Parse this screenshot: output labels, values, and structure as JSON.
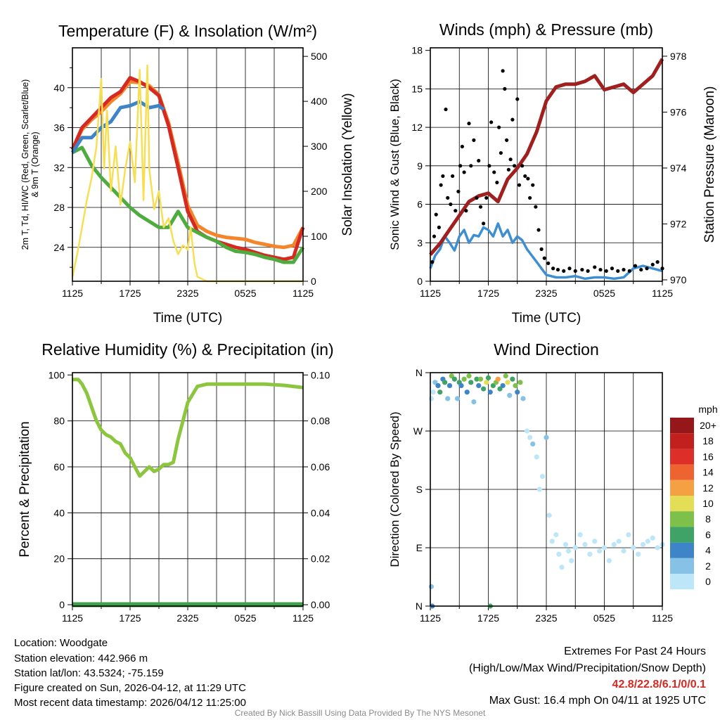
{
  "chart_data": [
    {
      "id": "temp",
      "type": "line",
      "title": "Temperature (F) & Insolation (W/m²)",
      "xlabel": "Time (UTC)",
      "ylabel_line1": "2m T, Td, HI/WC (Red, Green, Scarlet/Blue)",
      "ylabel_line2": "& 9m T (Orange)",
      "y2label": "Solar Insolation (Yellow)",
      "xticks": [
        "1125",
        "1725",
        "2325",
        "0525",
        "1125"
      ],
      "xlim": [
        0,
        24
      ],
      "ylim": [
        20.6,
        44
      ],
      "yticks": [
        24,
        28,
        32,
        36,
        40
      ],
      "y2lim": [
        0,
        519
      ],
      "y2ticks": [
        0,
        100,
        200,
        300,
        400,
        500
      ],
      "series": [
        {
          "name": "9m T",
          "axis": "left",
          "color": "#f4852b",
          "x": [
            0,
            1,
            2,
            3,
            4,
            5,
            6,
            7,
            8,
            9,
            10,
            11,
            12,
            13,
            14,
            15,
            16,
            17,
            18,
            19,
            20,
            21,
            22,
            23,
            24
          ],
          "values": [
            33.8,
            35.8,
            36.8,
            37.6,
            38.6,
            39.4,
            40.6,
            40.5,
            40.2,
            39.3,
            36.5,
            32.5,
            28.2,
            26.2,
            25.6,
            25.2,
            25,
            24.9,
            24.8,
            24.5,
            24.3,
            24.1,
            24,
            24.2,
            26
          ]
        },
        {
          "name": "2m T",
          "axis": "left",
          "color": "#d42a22",
          "x": [
            0,
            1,
            2,
            3,
            4,
            5,
            6,
            7,
            8,
            9,
            10,
            11,
            12,
            13,
            14,
            15,
            16,
            17,
            18,
            19,
            20,
            21,
            22,
            23,
            24
          ],
          "values": [
            33.8,
            36,
            37,
            38,
            39,
            39.6,
            41,
            40.6,
            40,
            39.2,
            36.2,
            32,
            27.6,
            25.6,
            25,
            24.6,
            24.3,
            24,
            23.8,
            23.5,
            23.2,
            23,
            22.8,
            23,
            26
          ]
        },
        {
          "name": "Td",
          "axis": "left",
          "color": "#4eab3e",
          "x": [
            0,
            1,
            2,
            3,
            4,
            5,
            6,
            7,
            8,
            9,
            10,
            11,
            12,
            13,
            14,
            15,
            16,
            17,
            18,
            19,
            20,
            21,
            22,
            23,
            24
          ],
          "values": [
            33.5,
            34,
            32.2,
            31,
            30,
            29,
            28,
            27.2,
            26.6,
            26,
            26,
            27.6,
            26,
            25.5,
            25,
            24.6,
            24,
            23.6,
            23.5,
            23.3,
            23,
            22.8,
            22.5,
            22.5,
            24
          ]
        },
        {
          "name": "WC",
          "axis": "left",
          "color": "#3d85c6",
          "x": [
            0,
            1,
            2,
            3,
            4,
            5,
            6,
            7,
            8,
            9,
            9.5
          ],
          "values": [
            33.5,
            35,
            35,
            36,
            36.6,
            38,
            38.2,
            38.6,
            38,
            38.2,
            37.8
          ]
        },
        {
          "name": "Solar",
          "axis": "right",
          "color": "#f7df55",
          "x": [
            0,
            0.5,
            1,
            1.5,
            2,
            2.5,
            3,
            3.3,
            3.6,
            4,
            4.5,
            5,
            5.5,
            6,
            6.5,
            7,
            7.4,
            7.8,
            8,
            8.5,
            9,
            9.5,
            10,
            10.5,
            11,
            11.5,
            12,
            12.3,
            12.7,
            13,
            14,
            16,
            18,
            20,
            22,
            23,
            24
          ],
          "values": [
            10,
            60,
            120,
            180,
            230,
            300,
            450,
            250,
            380,
            200,
            300,
            170,
            250,
            310,
            220,
            470,
            180,
            480,
            250,
            160,
            200,
            120,
            140,
            90,
            60,
            80,
            70,
            120,
            40,
            10,
            0,
            0,
            0,
            0,
            0,
            0,
            0
          ]
        }
      ]
    },
    {
      "id": "wind",
      "type": "line",
      "title": "Winds (mph) & Pressure (mb)",
      "xlabel": "Time (UTC)",
      "ylabel": "Sonic Wind & Gust (Blue, Black)",
      "y2label": "Station Pressure (Maroon)",
      "xticks": [
        "1125",
        "1725",
        "2325",
        "0525",
        "1125"
      ],
      "xlim": [
        0,
        24
      ],
      "ylim": [
        0,
        18.2
      ],
      "yticks": [
        0,
        3,
        6,
        9,
        12,
        15,
        18
      ],
      "y2lim": [
        969.95,
        978.3
      ],
      "y2ticks": [
        970,
        972,
        974,
        976,
        978
      ],
      "series": [
        {
          "name": "Sonic Wind",
          "axis": "left",
          "color": "#3d8fd2",
          "x": [
            0,
            0.5,
            1,
            1.5,
            2,
            2.5,
            3,
            3.5,
            4,
            4.5,
            5,
            5.5,
            6,
            6.5,
            7,
            7.5,
            8,
            8.5,
            9,
            9.5,
            10,
            10.5,
            11,
            11.5,
            12,
            13,
            14,
            15,
            16,
            17,
            18,
            19,
            20,
            21,
            22,
            23,
            24
          ],
          "values": [
            1,
            2,
            2.5,
            3.5,
            3,
            2.4,
            3.5,
            4,
            3,
            3.6,
            3.5,
            4.2,
            4,
            3.5,
            4.5,
            3.5,
            4,
            3,
            3.5,
            3.2,
            2.5,
            2,
            1.5,
            1,
            0.5,
            0.3,
            0.3,
            0.4,
            0.2,
            0.3,
            0.3,
            0.2,
            0.3,
            1,
            1.2,
            1,
            0.8
          ]
        },
        {
          "name": "Pressure",
          "axis": "right",
          "color": "#a01f1f",
          "x": [
            0,
            1,
            2,
            3,
            4,
            5,
            6,
            7,
            8,
            9,
            10,
            11,
            12,
            13,
            14,
            15,
            16,
            17,
            18,
            19,
            20,
            21,
            22,
            23,
            24
          ],
          "values": [
            970.9,
            971.3,
            971.8,
            972.3,
            972.8,
            973,
            973.1,
            972.8,
            973.6,
            974,
            974.5,
            975.3,
            976.4,
            976.9,
            977,
            977,
            977.1,
            977.3,
            976.8,
            976.9,
            977,
            976.7,
            977,
            977.3,
            977.9
          ]
        }
      ],
      "gusts": {
        "x": [
          0.2,
          0.4,
          0.6,
          0.9,
          1.1,
          1.3,
          1.6,
          1.8,
          2.1,
          2.3,
          2.6,
          2.9,
          3.1,
          3.3,
          3.5,
          3.7,
          4,
          4.2,
          4.5,
          4.8,
          5,
          5.2,
          5.5,
          5.8,
          6.1,
          6.3,
          6.6,
          6.9,
          7.1,
          7.3,
          7.5,
          7.7,
          7.9,
          8.1,
          8.3,
          8.5,
          8.7,
          9,
          9.2,
          9.5,
          9.8,
          10.1,
          10.3,
          10.6,
          10.9,
          11.2,
          11.5,
          11.8,
          12.2,
          12.7,
          13.2,
          13.8,
          14.4,
          15,
          15.7,
          16.3,
          17,
          17.6,
          18.2,
          18.8,
          19.4,
          20,
          20.6,
          21.2,
          21.8,
          22.4,
          23,
          23.5,
          24
        ],
        "values": [
          1.5,
          3.5,
          5.2,
          4.2,
          7.5,
          8.2,
          13.4,
          6.5,
          6,
          8.2,
          5.5,
          7,
          9,
          10.5,
          8.5,
          5.5,
          12.3,
          9,
          11,
          6.5,
          9.4,
          5.8,
          4.5,
          6.5,
          9,
          12.4,
          8.5,
          7.7,
          12,
          10,
          16.4,
          15,
          11,
          8.7,
          9.5,
          12.6,
          9,
          14.2,
          7.5,
          9,
          8.2,
          8,
          6.5,
          7.5,
          5.8,
          4,
          2.5,
          1.8,
          1.4,
          1,
          0.9,
          0.8,
          1,
          0.8,
          0.9,
          0.8,
          1.1,
          0.9,
          0.8,
          1,
          0.8,
          0.9,
          0.8,
          1.2,
          0.9,
          1,
          1.3,
          1.5,
          1.0
        ]
      },
      "gust_color": "#000000"
    },
    {
      "id": "rh",
      "type": "line",
      "title": "Relative Humidity (%) & Precipitation (in)",
      "xlabel": "",
      "ylabel": "Percent & Precipitation",
      "xticks": [
        "1125",
        "1725",
        "2325",
        "0525",
        "1125"
      ],
      "xlim": [
        0,
        24
      ],
      "ylim": [
        -0.6,
        101
      ],
      "yticks": [
        0,
        20,
        40,
        60,
        80,
        100
      ],
      "y2lim": [
        -0.0006,
        0.101
      ],
      "y2ticks": [
        "0.00",
        "0.02",
        "0.04",
        "0.06",
        "0.08",
        "0.10"
      ],
      "series": [
        {
          "name": "RH",
          "axis": "left",
          "color": "#8cc63f",
          "x": [
            0,
            0.6,
            1,
            1.5,
            2,
            2.5,
            3,
            3.5,
            4,
            4.5,
            5,
            5.5,
            6,
            6.5,
            7,
            7.5,
            8,
            8.5,
            9,
            9.5,
            10,
            10.5,
            11,
            11.5,
            12,
            13,
            14,
            16,
            18,
            20,
            22,
            23,
            24
          ],
          "values": [
            98,
            98,
            96,
            92,
            86,
            80,
            76,
            74,
            73,
            71,
            70,
            66,
            64,
            60,
            56,
            58,
            60,
            58,
            59,
            61,
            61,
            62,
            72,
            80,
            88,
            95,
            96,
            96,
            96,
            96,
            95.5,
            95,
            94.5
          ]
        },
        {
          "name": "Precipitation",
          "axis": "right",
          "color": "#3fa24a",
          "x": [
            0,
            24
          ],
          "values": [
            0,
            0
          ]
        }
      ]
    },
    {
      "id": "dir",
      "type": "scatter",
      "title": "Wind Direction",
      "xlabel": "",
      "ylabel": "Direction (Colored By Speed)",
      "xticks": [
        "1125",
        "1725",
        "2325",
        "0525",
        "1125"
      ],
      "xlim": [
        0,
        24
      ],
      "ylim": [
        0,
        360
      ],
      "yticks": [
        "N",
        "E",
        "S",
        "W",
        "N"
      ],
      "ytick_values": [
        0,
        90,
        180,
        270,
        360
      ],
      "points": {
        "x": [
          0.1,
          0.3,
          0.5,
          0.8,
          1,
          1.3,
          1.5,
          1.8,
          2,
          2.2,
          2.5,
          2.8,
          3,
          3.2,
          3.5,
          3.8,
          4,
          4.2,
          4.5,
          4.8,
          5,
          5.2,
          5.5,
          5.8,
          6,
          6.2,
          6.5,
          6.8,
          7,
          7.2,
          7.5,
          7.8,
          8,
          8.2,
          8.5,
          8.8,
          9,
          9.3,
          9.6,
          10,
          10.3,
          10.6,
          11,
          11.3,
          11.6,
          12,
          12.3,
          12.6,
          13,
          13.3,
          13.6,
          14,
          14.3,
          14.6,
          15,
          15.5,
          16,
          16.5,
          17,
          17.5,
          18,
          18.5,
          19,
          19.5,
          20,
          20.5,
          21,
          21.5,
          22,
          22.5,
          23,
          23.5,
          24,
          0.1,
          6.2,
          0.2
        ],
        "y": [
          320,
          330,
          345,
          340,
          330,
          350,
          345,
          320,
          340,
          355,
          350,
          320,
          345,
          340,
          350,
          330,
          355,
          345,
          315,
          350,
          340,
          350,
          335,
          345,
          352,
          330,
          340,
          345,
          350,
          335,
          340,
          355,
          345,
          325,
          350,
          340,
          330,
          345,
          320,
          270,
          260,
          250,
          230,
          180,
          200,
          260,
          140,
          100,
          110,
          80,
          60,
          95,
          85,
          70,
          90,
          110,
          95,
          80,
          100,
          85,
          90,
          70,
          95,
          100,
          85,
          110,
          90,
          80,
          95,
          100,
          105,
          90,
          95,
          30,
          0,
          0
        ],
        "speed": [
          0,
          0,
          1,
          2,
          3,
          2,
          3,
          1,
          2,
          4,
          3,
          1,
          3,
          2,
          4,
          2,
          4,
          3,
          1,
          3,
          2,
          4,
          3,
          5,
          3,
          2,
          3,
          4,
          6,
          3,
          2,
          4,
          5,
          1,
          3,
          4,
          2,
          4,
          1,
          0,
          0,
          1,
          0,
          0,
          0,
          1,
          0,
          0,
          0,
          0,
          0,
          0,
          0,
          0,
          0,
          0,
          0,
          0,
          0,
          0,
          0,
          0,
          0,
          0,
          0,
          0,
          0,
          0,
          0,
          0,
          0,
          0,
          0,
          1,
          3,
          2
        ]
      },
      "legend": {
        "title": "mph",
        "labels": [
          "20+",
          "18",
          "16",
          "14",
          "12",
          "10",
          "8",
          "6",
          "4",
          "2",
          "0"
        ],
        "colors": [
          "#96171a",
          "#c1201f",
          "#dd2f27",
          "#ee6431",
          "#f5a042",
          "#e4de57",
          "#7dc04a",
          "#3fa266",
          "#3d85c6",
          "#86c1e6",
          "#bde6f8"
        ]
      }
    }
  ],
  "footer": {
    "location": "Location: Woodgate",
    "elevation": "Station elevation: 442.966 m",
    "latlon": "Station lat/lon: 43.5324; -75.159",
    "created": "Figure created on Sun, 2026-04-12, at 11:29 UTC",
    "recent": "Most recent data timestamp: 2026/04/12 11:25:00",
    "extremes_title": "Extremes For Past 24 Hours",
    "extremes_desc": "(High/Low/Max Wind/Precipitation/Snow Depth)",
    "extremes_values": "42.8/22.8/6.1/0/0.1",
    "extremes_color": "#d42a22",
    "max_gust": "Max Gust: 16.4 mph On 04/11 at 1925 UTC",
    "credit": "Created By Nick Bassill Using Data Provided By The NYS Mesonet"
  }
}
